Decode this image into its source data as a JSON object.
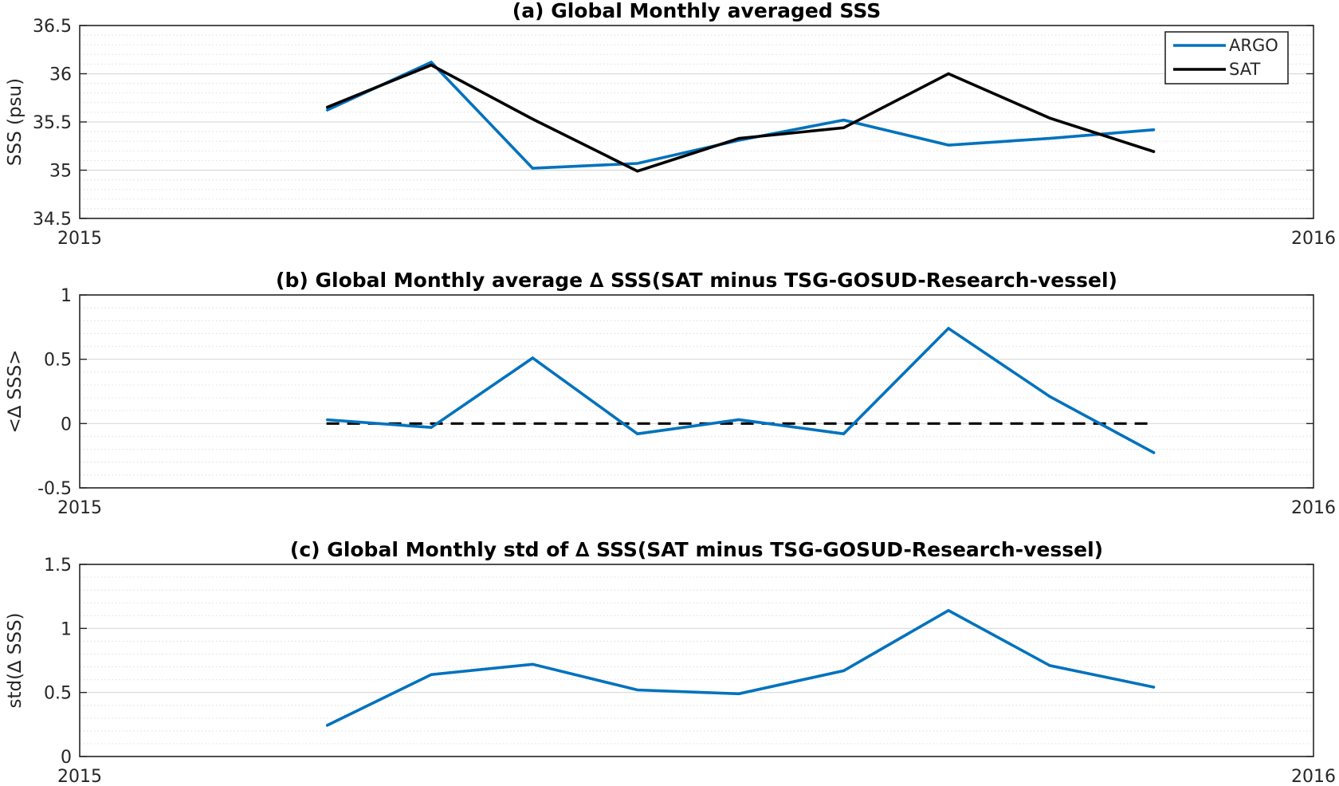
{
  "colors": {
    "argo": "#0072BD",
    "sat": "#000000",
    "zero_line": "#000000",
    "grid_major": "#d9d9d9",
    "grid_minor": "#e3e3e3",
    "axes": "#262626"
  },
  "chart_data": [
    {
      "type": "line",
      "title": "(a) Global Monthly averaged SSS",
      "ylabel": "SSS (psu)",
      "xlabel": "",
      "xlim": [
        "2015-01-01",
        "2016-01-01"
      ],
      "xticks": [
        "2015",
        "2016"
      ],
      "ylim": [
        34.5,
        36.5
      ],
      "yticks": [
        "34.5",
        "35",
        "35.5",
        "36",
        "36.5"
      ],
      "grid": true,
      "minor_grid": true,
      "legend": "top-right",
      "x": [
        "2015-03-15",
        "2015-04-15",
        "2015-05-15",
        "2015-06-15",
        "2015-07-15",
        "2015-08-15",
        "2015-09-15",
        "2015-10-15",
        "2015-11-15"
      ],
      "series": [
        {
          "name": "ARGO",
          "color": "#0072BD",
          "values": [
            35.62,
            36.12,
            35.02,
            35.07,
            35.31,
            35.52,
            35.26,
            35.33,
            35.42
          ]
        },
        {
          "name": "SAT",
          "color": "#000000",
          "values": [
            35.65,
            36.09,
            35.53,
            34.99,
            35.33,
            35.44,
            36.0,
            35.54,
            35.19
          ]
        }
      ]
    },
    {
      "type": "line",
      "title": "(b) Global Monthly average ∆ SSS(SAT minus TSG-GOSUD-Research-vessel)",
      "ylabel": "<∆ SSS>",
      "xlabel": "",
      "xlim": [
        "2015-01-01",
        "2016-01-01"
      ],
      "xticks": [
        "2015",
        "2016"
      ],
      "ylim": [
        -0.5,
        1
      ],
      "yticks": [
        "-0.5",
        "0",
        "0.5",
        "1"
      ],
      "grid": true,
      "minor_grid": true,
      "reference_line": 0,
      "x": [
        "2015-03-15",
        "2015-04-15",
        "2015-05-15",
        "2015-06-15",
        "2015-07-15",
        "2015-08-15",
        "2015-09-15",
        "2015-10-15",
        "2015-11-15"
      ],
      "series": [
        {
          "color": "#0072BD",
          "values": [
            0.03,
            -0.03,
            0.51,
            -0.08,
            0.03,
            -0.08,
            0.74,
            0.21,
            -0.23
          ]
        }
      ]
    },
    {
      "type": "line",
      "title": "(c) Global Monthly std of ∆ SSS(SAT minus TSG-GOSUD-Research-vessel)",
      "ylabel": "std(∆ SSS)",
      "xlabel": "",
      "xlim": [
        "2015-01-01",
        "2016-01-01"
      ],
      "xticks": [
        "2015",
        "2016"
      ],
      "ylim": [
        0,
        1.5
      ],
      "yticks": [
        "0",
        "0.5",
        "1",
        "1.5"
      ],
      "grid": true,
      "minor_grid": true,
      "x": [
        "2015-03-15",
        "2015-04-15",
        "2015-05-15",
        "2015-06-15",
        "2015-07-15",
        "2015-08-15",
        "2015-09-15",
        "2015-10-15",
        "2015-11-15"
      ],
      "series": [
        {
          "color": "#0072BD",
          "values": [
            0.24,
            0.64,
            0.72,
            0.52,
            0.49,
            0.67,
            1.14,
            0.71,
            0.54
          ]
        }
      ]
    }
  ]
}
